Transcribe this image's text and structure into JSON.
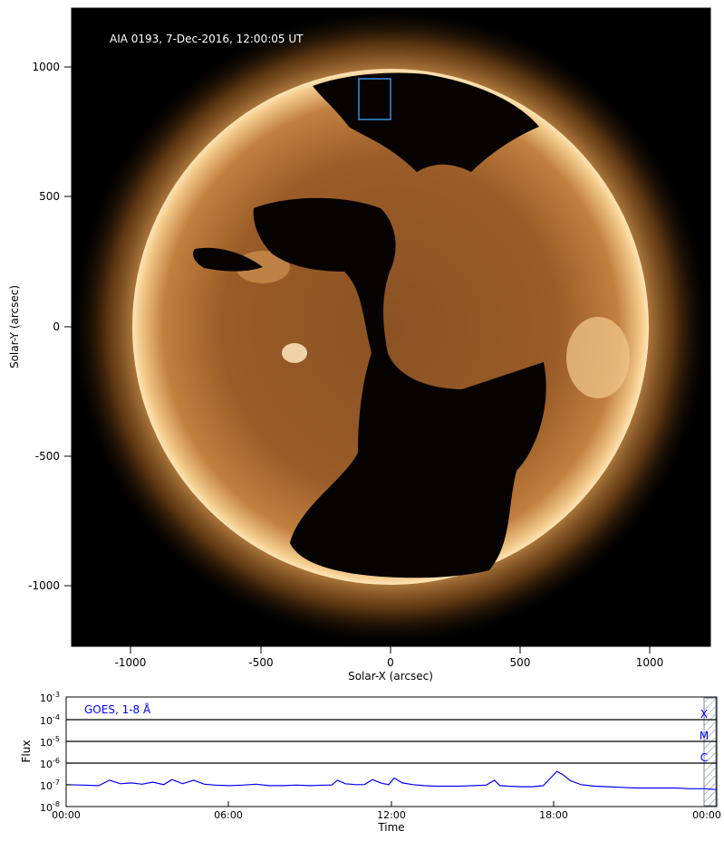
{
  "solar_image": {
    "title": "AIA 0193, 7-Dec-2016, 12:00:05 UT",
    "xlabel": "Solar-X (arcsec)",
    "ylabel": "Solar-Y (arcsec)",
    "x_ticks": [
      "-1000",
      "-500",
      "0",
      "500",
      "1000"
    ],
    "y_ticks": [
      "1000",
      "500",
      "0",
      "-500",
      "-1000"
    ]
  },
  "goes_panel": {
    "label": "GOES, 1-8 Å",
    "ylabel": "Flux",
    "xlabel": "Time",
    "y_ticks": [
      {
        "base": "10",
        "exp": "-3"
      },
      {
        "base": "10",
        "exp": "-4"
      },
      {
        "base": "10",
        "exp": "-5"
      },
      {
        "base": "10",
        "exp": "-6"
      },
      {
        "base": "10",
        "exp": "-7"
      },
      {
        "base": "10",
        "exp": "-8"
      }
    ],
    "x_ticks": [
      "00:00",
      "06:00",
      "12:00",
      "18:00",
      "00:00"
    ],
    "flare_classes": [
      "X",
      "M",
      "C"
    ]
  },
  "chart_data": {
    "type": "line",
    "title": "",
    "xlabel": "Time",
    "ylabel": "Flux",
    "log_y": true,
    "ylim": [
      1e-08,
      0.001
    ],
    "xlim_hours": [
      0,
      24
    ],
    "series": [
      {
        "name": "GOES, 1-8 Å",
        "color": "#0000ff",
        "x_hours": [
          0,
          0.6,
          1.2,
          1.6,
          2.0,
          2.4,
          2.8,
          3.2,
          3.6,
          3.9,
          4.3,
          4.7,
          5.1,
          5.5,
          6.0,
          6.5,
          7.0,
          7.5,
          8.0,
          8.5,
          9.0,
          9.5,
          9.8,
          10.0,
          10.3,
          10.7,
          11.0,
          11.3,
          11.6,
          11.9,
          12.1,
          12.4,
          12.8,
          13.2,
          13.6,
          14.0,
          14.5,
          15.0,
          15.5,
          15.8,
          16.0,
          16.3,
          16.8,
          17.2,
          17.6,
          17.9,
          18.1,
          18.3,
          18.6,
          19.0,
          19.5,
          20.0,
          20.5,
          21.0,
          21.5,
          22.0,
          22.5,
          23.0,
          23.5,
          24.0
        ],
        "flux": [
          1e-07,
          9.5e-08,
          9e-08,
          1.6e-07,
          1.1e-07,
          1.2e-07,
          1.05e-07,
          1.3e-07,
          1e-07,
          1.7e-07,
          1.1e-07,
          1.6e-07,
          1.05e-07,
          9.5e-08,
          9e-08,
          9.5e-08,
          1.05e-07,
          9e-08,
          9e-08,
          9.5e-08,
          9e-08,
          9.5e-08,
          9.5e-08,
          1.6e-07,
          1.1e-07,
          1e-07,
          1e-07,
          1.7e-07,
          1.2e-07,
          1e-07,
          2e-07,
          1.2e-07,
          1e-07,
          9e-08,
          8.5e-08,
          8.5e-08,
          8.5e-08,
          9e-08,
          9.5e-08,
          1.6e-07,
          9e-08,
          8.5e-08,
          8e-08,
          8e-08,
          9e-08,
          2.2e-07,
          4e-07,
          3e-07,
          1.5e-07,
          1e-07,
          8.5e-08,
          8e-08,
          7.5e-08,
          7e-08,
          7e-08,
          7e-08,
          7e-08,
          6.5e-08,
          6.5e-08,
          6e-08
        ]
      }
    ]
  }
}
